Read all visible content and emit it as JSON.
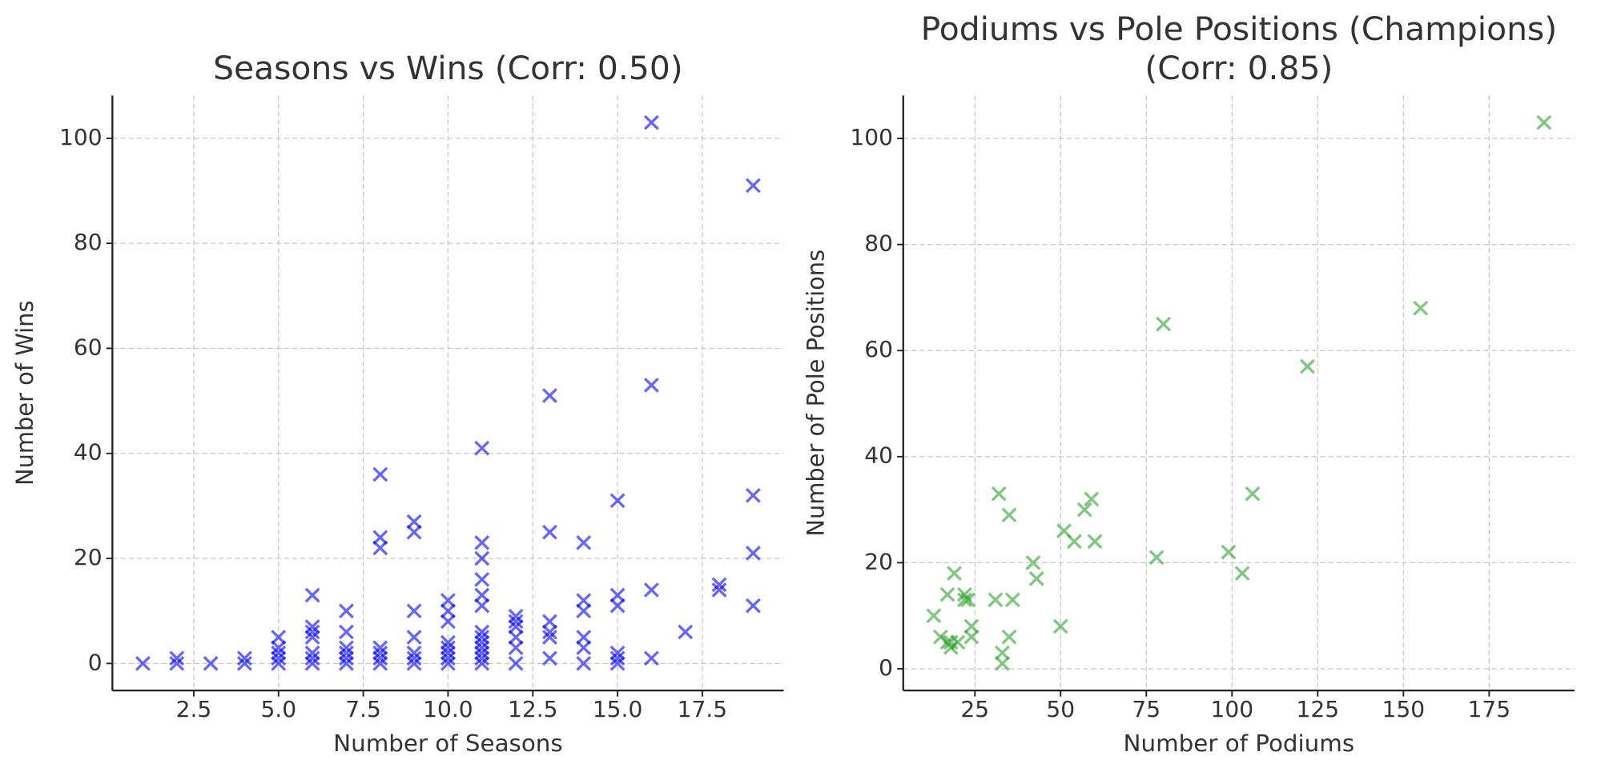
{
  "chart_data": [
    {
      "type": "scatter",
      "title": "Seasons vs Wins (Corr: 0.50)",
      "xlabel": "Number of Seasons",
      "ylabel": "Number of Wins",
      "color": "#0000ff",
      "x": [
        1,
        2,
        2,
        3,
        4,
        4,
        5,
        5,
        5,
        5,
        5,
        6,
        6,
        6,
        6,
        6,
        6,
        6,
        7,
        7,
        7,
        7,
        7,
        7,
        8,
        8,
        8,
        8,
        8,
        8,
        8,
        9,
        9,
        9,
        9,
        9,
        9,
        9,
        10,
        10,
        10,
        10,
        10,
        10,
        10,
        10,
        11,
        11,
        11,
        11,
        11,
        11,
        11,
        11,
        11,
        11,
        11,
        11,
        11,
        12,
        12,
        12,
        12,
        12,
        12,
        13,
        13,
        13,
        13,
        13,
        13,
        14,
        14,
        14,
        14,
        14,
        14,
        15,
        15,
        15,
        15,
        15,
        15,
        16,
        16,
        16,
        16,
        17,
        18,
        18,
        19,
        19,
        19,
        19
      ],
      "values": [
        0,
        0,
        1,
        0,
        0,
        1,
        0,
        1,
        2,
        3,
        5,
        0,
        1,
        2,
        5,
        6,
        7,
        13,
        0,
        1,
        2,
        3,
        6,
        10,
        0,
        1,
        2,
        3,
        22,
        24,
        36,
        0,
        1,
        2,
        5,
        10,
        25,
        27,
        0,
        1,
        2,
        3,
        4,
        8,
        10,
        12,
        0,
        1,
        2,
        3,
        4,
        5,
        6,
        11,
        13,
        16,
        20,
        23,
        41,
        0,
        3,
        5,
        7,
        8,
        9,
        1,
        5,
        6,
        8,
        25,
        51,
        0,
        3,
        5,
        10,
        12,
        23,
        0,
        1,
        2,
        11,
        13,
        31,
        1,
        14,
        53,
        103,
        6,
        14,
        15,
        11,
        21,
        32,
        91
      ],
      "xlim": [
        0.1,
        19.9
      ],
      "ylim": [
        -5.15,
        108.15
      ],
      "xticks": [
        2.5,
        {
          "value": 5,
          "label": "5.0"
        },
        7.5,
        {
          "value": 10,
          "label": "10.0"
        },
        12.5,
        {
          "value": 15,
          "label": "15.0"
        },
        17.5
      ],
      "yticks": [
        0,
        20,
        40,
        60,
        80,
        100
      ],
      "grid": true
    },
    {
      "type": "scatter",
      "title": [
        "Podiums vs Pole Positions (Champions)",
        "(Corr: 0.85)"
      ],
      "xlabel": "Number of Podiums",
      "ylabel": "Number of Pole Positions",
      "color": "#2ca02c",
      "x": [
        13,
        15,
        17,
        17,
        18,
        18,
        19,
        20,
        22,
        22,
        23,
        24,
        24,
        31,
        32,
        33,
        33,
        35,
        35,
        36,
        42,
        43,
        50,
        51,
        54,
        57,
        59,
        60,
        78,
        80,
        99,
        103,
        106,
        122,
        155,
        191
      ],
      "values": [
        10,
        6,
        14,
        5,
        4,
        5,
        18,
        5,
        14,
        13,
        13,
        8,
        6,
        13,
        33,
        3,
        1,
        6,
        29,
        13,
        20,
        17,
        8,
        26,
        24,
        30,
        32,
        24,
        21,
        65,
        22,
        18,
        33,
        57,
        68,
        103
      ],
      "xlim": [
        4.1,
        199.9
      ],
      "ylim": [
        -4.1,
        108.1
      ],
      "xticks": [
        25,
        50,
        75,
        100,
        125,
        150,
        175
      ],
      "yticks": [
        0,
        20,
        40,
        60,
        80,
        100
      ],
      "grid": true
    }
  ]
}
